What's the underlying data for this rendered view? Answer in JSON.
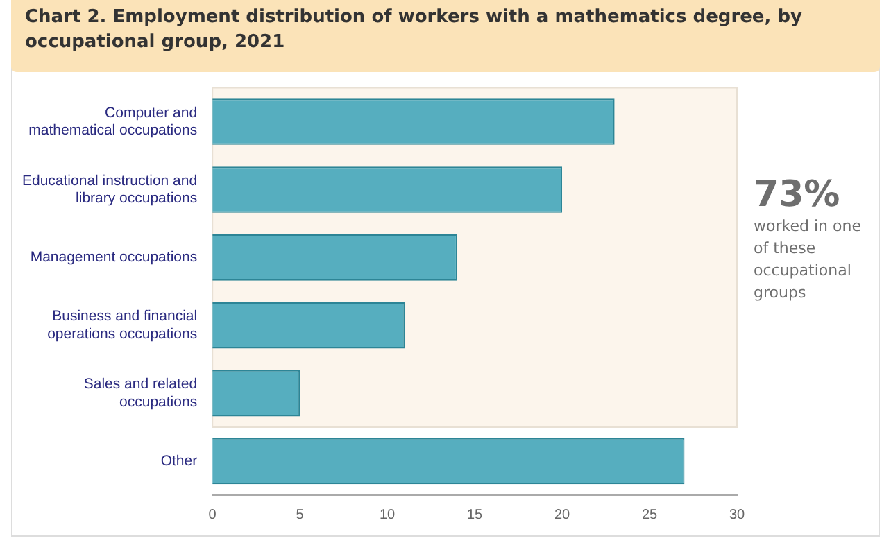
{
  "chart_data": {
    "type": "bar",
    "orientation": "horizontal",
    "title": "Chart 2. Employment distribution of workers with a mathematics degree, by occupational group, 2021",
    "categories": [
      "Computer and mathematical occupations",
      "Educational instruction and library occupations",
      "Management occupations",
      "Business and financial operations occupations",
      "Sales and related occupations",
      "Other"
    ],
    "values": [
      23,
      20,
      14,
      11,
      5,
      27
    ],
    "color": "#56aebf",
    "xlim": [
      0,
      30
    ],
    "xticks": [
      0,
      5,
      10,
      15,
      20,
      25,
      30
    ],
    "grid": false,
    "bands": [
      {
        "axis": "y",
        "from": "Computer and mathematical occupations",
        "to": "Sales and related occupations",
        "color": "#fcf5ec"
      }
    ],
    "annotations": [
      "73%",
      "worked in one of these occupational groups"
    ]
  }
}
